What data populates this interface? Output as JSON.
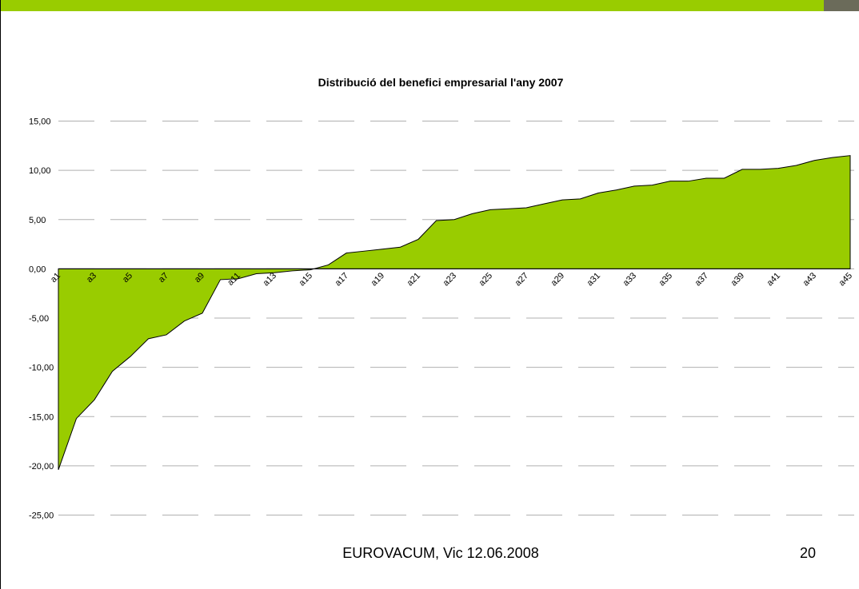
{
  "chart_data": {
    "type": "area",
    "title": "Distribució del benefici empresarial l'any 2007",
    "categories": [
      "a1",
      null,
      "a3",
      null,
      "a5",
      null,
      "a7",
      null,
      "a9",
      null,
      "a11",
      null,
      "a13",
      null,
      "a15",
      null,
      "a17",
      null,
      "a19",
      null,
      "a21",
      null,
      "a23",
      null,
      "a25",
      null,
      "a27",
      null,
      "a29",
      null,
      "a31",
      null,
      "a33",
      null,
      "a35",
      null,
      "a37",
      null,
      "a39",
      null,
      "a41",
      null,
      "a43",
      null,
      "a45"
    ],
    "values": [
      -20.4,
      -15.2,
      -13.3,
      -10.4,
      -8.9,
      -7.1,
      -6.7,
      -5.3,
      -4.5,
      -1.1,
      -1.0,
      -0.5,
      -0.4,
      -0.2,
      -0.1,
      0.4,
      1.6,
      1.8,
      2.0,
      2.2,
      3.0,
      4.9,
      5.0,
      5.6,
      6.0,
      6.1,
      6.2,
      6.6,
      7.0,
      7.1,
      7.7,
      8.0,
      8.4,
      8.5,
      8.9,
      8.9,
      9.2,
      9.2,
      10.1,
      10.1,
      10.2,
      10.5,
      11.0,
      11.3,
      11.5
    ],
    "color": "#99cc00",
    "ylim": [
      -25,
      15
    ],
    "yticks": [
      {
        "value": -25,
        "label": "-25,00"
      },
      {
        "value": -20,
        "label": "-20,00"
      },
      {
        "value": -15,
        "label": "-15,00"
      },
      {
        "value": -10,
        "label": "-10,00"
      },
      {
        "value": -5,
        "label": "-5,00"
      },
      {
        "value": 0,
        "label": "0,00"
      },
      {
        "value": 5,
        "label": "5,00"
      },
      {
        "value": 10,
        "label": "10,00"
      },
      {
        "value": 15,
        "label": "15,00"
      }
    ],
    "grid": true
  },
  "footer": {
    "text": "EUROVACUM, Vic 12.06.2008",
    "page_number": "20"
  }
}
